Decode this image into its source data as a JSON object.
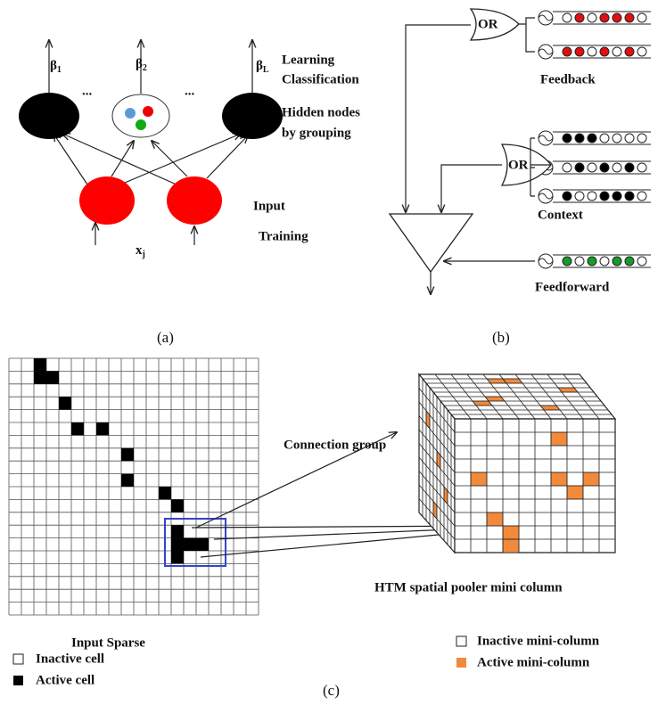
{
  "panel_a": {
    "outputs": [
      {
        "symbol": "β",
        "subscript": "1"
      },
      {
        "symbol": "β",
        "subscript": "2"
      },
      {
        "symbol": "β",
        "subscript": "L"
      }
    ],
    "ellipses": [
      "...",
      "..."
    ],
    "labels": [
      "Learning",
      "Classification",
      "Hidden nodes",
      "by grouping",
      "Input",
      "Training"
    ],
    "input": {
      "symbol": "x",
      "subscript": "j"
    },
    "caption": "(a)"
  },
  "panel_b": {
    "gates": [
      "OR",
      "OR"
    ],
    "labels": [
      "Feedback",
      "Context",
      "Feedforward"
    ],
    "caption": "(b)"
  },
  "panel_c": {
    "connection": "Connection group",
    "cube_title": "HTM spatial pooler mini column",
    "grid_title": "Input Sparse",
    "legend_left": [
      "Inactive cell",
      "Active cell"
    ],
    "legend_right": [
      "Inactive mini-column",
      "Active mini-column"
    ],
    "caption": "(c)"
  }
}
